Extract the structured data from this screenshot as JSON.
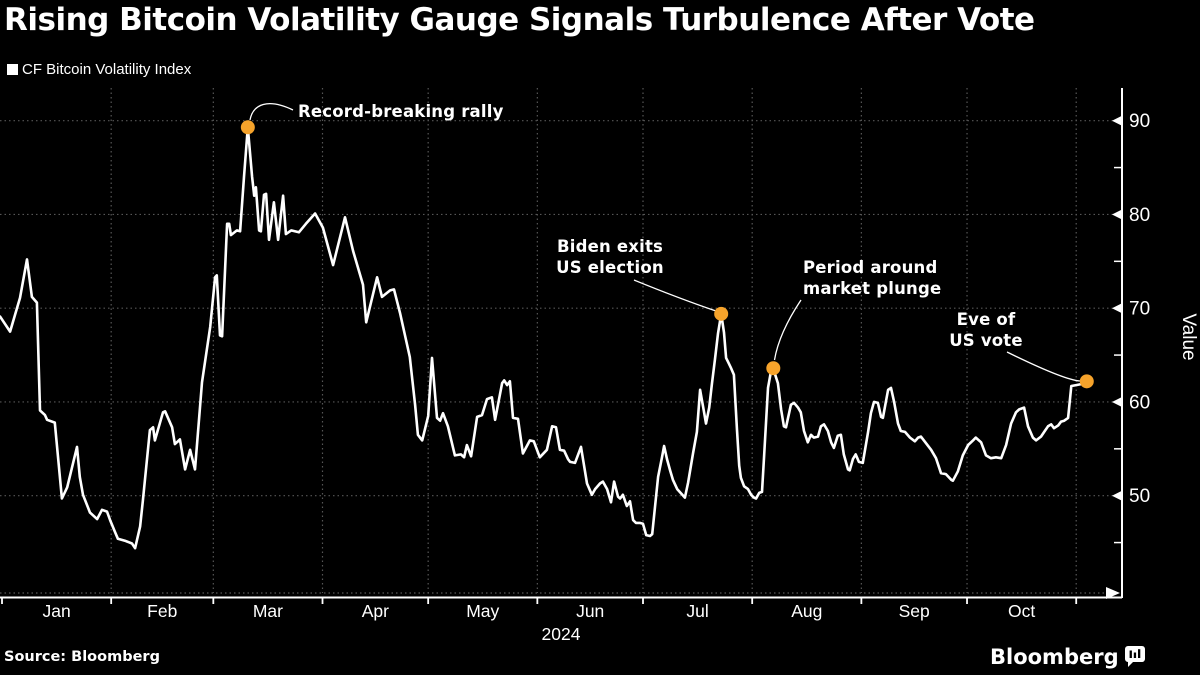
{
  "title": "Rising Bitcoin Volatility Gauge Signals Turbulence After Vote",
  "legend": {
    "label": "CF Bitcoin Volatility Index",
    "swatch_color": "#ffffff"
  },
  "source": "Source: Bloomberg",
  "brand": {
    "wordmark": "Bloomberg",
    "icon": "bloomberg-terminal-icon"
  },
  "colors": {
    "background": "#000000",
    "line": "#ffffff",
    "grid": "#565656",
    "axis": "#ffffff",
    "annotation_marker": "#f6a32b",
    "text": "#ffffff"
  },
  "chart_data": {
    "type": "line",
    "title": "Rising Bitcoin Volatility Gauge Signals Turbulence After Vote",
    "xlabel": "2024",
    "ylabel": "Value",
    "grid": "dashed",
    "legend_position": "top-left",
    "x_axis": {
      "unit": "day_of_year_2024",
      "month_labels": [
        "Jan",
        "Feb",
        "Mar",
        "Apr",
        "May",
        "Jun",
        "Jul",
        "Aug",
        "Sep",
        "Oct"
      ],
      "month_start_days": [
        1,
        32,
        61,
        92,
        122,
        153,
        183,
        214,
        245,
        275,
        306
      ],
      "year_label": "2024"
    },
    "y_axis": {
      "label": "Value",
      "ticks": [
        90,
        80,
        70,
        60,
        50
      ],
      "minor_ticks": [
        85,
        75,
        65,
        55,
        45
      ],
      "range": [
        39.5,
        93.5
      ]
    },
    "series": [
      {
        "name": "CF Bitcoin Volatility Index",
        "color": "#ffffff",
        "points": [
          [
            0.45,
            69.1
          ],
          [
            3.3,
            67.5
          ],
          [
            6.1,
            71.1
          ],
          [
            8.1,
            75.2
          ],
          [
            9.5,
            71.2
          ],
          [
            10.9,
            70.6
          ],
          [
            11.8,
            59.1
          ],
          [
            13.2,
            58.6
          ],
          [
            13.8,
            58.1
          ],
          [
            16,
            57.8
          ],
          [
            18,
            49.7
          ],
          [
            19.5,
            50.9
          ],
          [
            22.3,
            55.2
          ],
          [
            23.1,
            52
          ],
          [
            24,
            50.1
          ],
          [
            26,
            48.2
          ],
          [
            28,
            47.5
          ],
          [
            29.4,
            48.5
          ],
          [
            30.8,
            48.3
          ],
          [
            31.7,
            47.4
          ],
          [
            33.1,
            46.1
          ],
          [
            33.9,
            45.4
          ],
          [
            35.9,
            45.2
          ],
          [
            37.9,
            44.9
          ],
          [
            38.8,
            44.4
          ],
          [
            40.2,
            46.7
          ],
          [
            41,
            49.5
          ],
          [
            43,
            57
          ],
          [
            43.9,
            57.3
          ],
          [
            44.4,
            55.9
          ],
          [
            46.7,
            58.9
          ],
          [
            47.3,
            59
          ],
          [
            49.3,
            57.3
          ],
          [
            50.1,
            55.5
          ],
          [
            51.5,
            56
          ],
          [
            53,
            52.8
          ],
          [
            54.4,
            54.9
          ],
          [
            55.8,
            52.8
          ],
          [
            57.8,
            62.1
          ],
          [
            60.1,
            68
          ],
          [
            61.5,
            73.3
          ],
          [
            62,
            73.5
          ],
          [
            62.9,
            67.1
          ],
          [
            63.5,
            67
          ],
          [
            64.9,
            79
          ],
          [
            65.5,
            79
          ],
          [
            66,
            77.8
          ],
          [
            67.7,
            78.3
          ],
          [
            68.6,
            78.2
          ],
          [
            69.7,
            84
          ],
          [
            70.8,
            89.3
          ],
          [
            72,
            84
          ],
          [
            72.6,
            82
          ],
          [
            73.1,
            82.9
          ],
          [
            74,
            78.3
          ],
          [
            74.5,
            78.2
          ],
          [
            75.4,
            82.1
          ],
          [
            76,
            82.2
          ],
          [
            76.8,
            77.3
          ],
          [
            78.2,
            81.3
          ],
          [
            79.4,
            77.3
          ],
          [
            80.8,
            82
          ],
          [
            81.6,
            77.9
          ],
          [
            83.1,
            78.3
          ],
          [
            85.3,
            78.1
          ],
          [
            87.3,
            79
          ],
          [
            89.9,
            80.1
          ],
          [
            92.1,
            78.6
          ],
          [
            95,
            74.6
          ],
          [
            98.4,
            79.7
          ],
          [
            100.7,
            76.1
          ],
          [
            103.5,
            72.5
          ],
          [
            104.4,
            68.5
          ],
          [
            107.5,
            73.3
          ],
          [
            108.9,
            71.2
          ],
          [
            111.2,
            71.9
          ],
          [
            112.3,
            72
          ],
          [
            114,
            69.5
          ],
          [
            116.8,
            64.8
          ],
          [
            118.3,
            59.7
          ],
          [
            119.1,
            56.5
          ],
          [
            120.3,
            55.9
          ],
          [
            122,
            58.5
          ],
          [
            123.1,
            64.7
          ],
          [
            124.5,
            58.3
          ],
          [
            125.4,
            58
          ],
          [
            126.2,
            58.8
          ],
          [
            127.6,
            57.4
          ],
          [
            129.6,
            54.3
          ],
          [
            131.3,
            54.4
          ],
          [
            132.2,
            54.1
          ],
          [
            133,
            55.4
          ],
          [
            134.2,
            54.2
          ],
          [
            135.9,
            58.4
          ],
          [
            137.3,
            58.6
          ],
          [
            138.7,
            60.3
          ],
          [
            140.1,
            60.5
          ],
          [
            141,
            58.1
          ],
          [
            143,
            62
          ],
          [
            143.6,
            62.3
          ],
          [
            144.4,
            61.8
          ],
          [
            145.2,
            62.2
          ],
          [
            146.1,
            58.3
          ],
          [
            147.5,
            58.2
          ],
          [
            148.9,
            54.5
          ],
          [
            150.9,
            55.9
          ],
          [
            152,
            55.8
          ],
          [
            153.7,
            54.1
          ],
          [
            155.7,
            54.9
          ],
          [
            157.2,
            57.4
          ],
          [
            158.3,
            57.3
          ],
          [
            159.4,
            54.9
          ],
          [
            160.6,
            54.8
          ],
          [
            161.7,
            53.9
          ],
          [
            162.3,
            53.6
          ],
          [
            163.7,
            53.5
          ],
          [
            165.4,
            55.2
          ],
          [
            167.1,
            51.3
          ],
          [
            168.5,
            50.1
          ],
          [
            169.4,
            50.7
          ],
          [
            170.8,
            51.3
          ],
          [
            171.6,
            51.5
          ],
          [
            172.8,
            50.7
          ],
          [
            173.9,
            49.3
          ],
          [
            174.8,
            51.5
          ],
          [
            175.9,
            49.9
          ],
          [
            176.5,
            49.7
          ],
          [
            177.3,
            50.1
          ],
          [
            178.4,
            48.9
          ],
          [
            179.3,
            49.4
          ],
          [
            180.2,
            47.4
          ],
          [
            181,
            47.1
          ],
          [
            182.1,
            47.1
          ],
          [
            183,
            47
          ],
          [
            183.9,
            45.8
          ],
          [
            185,
            45.7
          ],
          [
            185.6,
            45.9
          ],
          [
            186.4,
            48.8
          ],
          [
            187.3,
            52
          ],
          [
            188.4,
            54.1
          ],
          [
            189,
            55.3
          ],
          [
            189.8,
            53.9
          ],
          [
            190.7,
            52.7
          ],
          [
            191.5,
            51.7
          ],
          [
            192.7,
            50.7
          ],
          [
            194.9,
            49.8
          ],
          [
            195.8,
            51.4
          ],
          [
            197.2,
            54.5
          ],
          [
            198.3,
            56.8
          ],
          [
            199.2,
            61.3
          ],
          [
            200.3,
            59
          ],
          [
            200.9,
            57.7
          ],
          [
            201.8,
            59.4
          ],
          [
            202.6,
            62
          ],
          [
            203.4,
            64.5
          ],
          [
            204.3,
            67.3
          ],
          [
            205.2,
            69.4
          ],
          [
            206,
            67.4
          ],
          [
            206.6,
            64.7
          ],
          [
            207.1,
            64.3
          ],
          [
            208,
            63.6
          ],
          [
            208.8,
            62.9
          ],
          [
            209.7,
            57
          ],
          [
            210.3,
            53.2
          ],
          [
            210.8,
            51.9
          ],
          [
            211.7,
            51
          ],
          [
            212.8,
            50.7
          ],
          [
            213.7,
            50.1
          ],
          [
            214.5,
            49.8
          ],
          [
            215.1,
            49.7
          ],
          [
            216,
            50.3
          ],
          [
            216.8,
            50.4
          ],
          [
            217.4,
            54.4
          ],
          [
            218.5,
            61.5
          ],
          [
            219.4,
            63.4
          ],
          [
            220,
            63.6
          ],
          [
            220.7,
            62.7
          ],
          [
            221.3,
            62
          ],
          [
            222.2,
            59.2
          ],
          [
            223,
            57.4
          ],
          [
            223.6,
            57.3
          ],
          [
            225,
            59.7
          ],
          [
            225.9,
            59.9
          ],
          [
            227,
            59.4
          ],
          [
            227.8,
            58.9
          ],
          [
            228.7,
            56.9
          ],
          [
            229.8,
            55.7
          ],
          [
            230.7,
            56.5
          ],
          [
            231.5,
            56.2
          ],
          [
            232.7,
            56.3
          ],
          [
            233.5,
            57.4
          ],
          [
            234.4,
            57.6
          ],
          [
            235.5,
            56.9
          ],
          [
            236.4,
            55.7
          ],
          [
            237.2,
            55.1
          ],
          [
            238.3,
            56.4
          ],
          [
            239.2,
            56.5
          ],
          [
            240,
            54.4
          ],
          [
            241.2,
            52.8
          ],
          [
            241.7,
            52.7
          ],
          [
            242.6,
            53.9
          ],
          [
            243.4,
            54.4
          ],
          [
            244.3,
            53.6
          ],
          [
            245.4,
            53.5
          ],
          [
            246.9,
            56.8
          ],
          [
            247.7,
            58.8
          ],
          [
            248.6,
            60
          ],
          [
            249.7,
            59.9
          ],
          [
            250.6,
            58.4
          ],
          [
            251.1,
            58.3
          ],
          [
            252.6,
            61.3
          ],
          [
            253.4,
            61.5
          ],
          [
            254.3,
            60
          ],
          [
            255.4,
            57.7
          ],
          [
            256.2,
            56.9
          ],
          [
            257.4,
            56.8
          ],
          [
            258.8,
            56.2
          ],
          [
            260.2,
            55.8
          ],
          [
            261.1,
            56.2
          ],
          [
            261.9,
            56.3
          ],
          [
            264.8,
            54.9
          ],
          [
            266.2,
            54
          ],
          [
            267.6,
            52.4
          ],
          [
            269,
            52.3
          ],
          [
            270.5,
            51.7
          ],
          [
            271,
            51.6
          ],
          [
            272.4,
            52.6
          ],
          [
            273.8,
            54.3
          ],
          [
            275.3,
            55.4
          ],
          [
            276.7,
            55.9
          ],
          [
            277.5,
            56.2
          ],
          [
            279,
            55.7
          ],
          [
            280.4,
            54.3
          ],
          [
            281.8,
            54
          ],
          [
            283.2,
            54.1
          ],
          [
            284.7,
            54
          ],
          [
            286.1,
            55.4
          ],
          [
            287.5,
            57.7
          ],
          [
            288.9,
            58.9
          ],
          [
            289.8,
            59.2
          ],
          [
            291.2,
            59.4
          ],
          [
            292.3,
            57.4
          ],
          [
            293.7,
            56.2
          ],
          [
            294.6,
            55.9
          ],
          [
            296,
            56.3
          ],
          [
            296.9,
            56.8
          ],
          [
            298,
            57.4
          ],
          [
            298.9,
            57.6
          ],
          [
            299.7,
            57.2
          ],
          [
            300.9,
            57.5
          ],
          [
            301.7,
            57.9
          ],
          [
            302.6,
            58
          ],
          [
            303.7,
            58.3
          ],
          [
            304.6,
            61.7
          ],
          [
            306,
            61.8
          ],
          [
            307.4,
            61.9
          ],
          [
            308.2,
            62
          ],
          [
            309,
            62.2
          ]
        ]
      }
    ],
    "annotations": [
      {
        "lines": [
          "Record-breaking rally"
        ],
        "day": 70.8,
        "value": 89.3
      },
      {
        "lines": [
          "Biden exits",
          "US election"
        ],
        "day": 205.2,
        "value": 69.4
      },
      {
        "lines": [
          "Period around",
          "market plunge"
        ],
        "day": 220,
        "value": 63.6
      },
      {
        "lines": [
          "Eve of",
          "US vote"
        ],
        "day": 309,
        "value": 62.2
      }
    ]
  }
}
